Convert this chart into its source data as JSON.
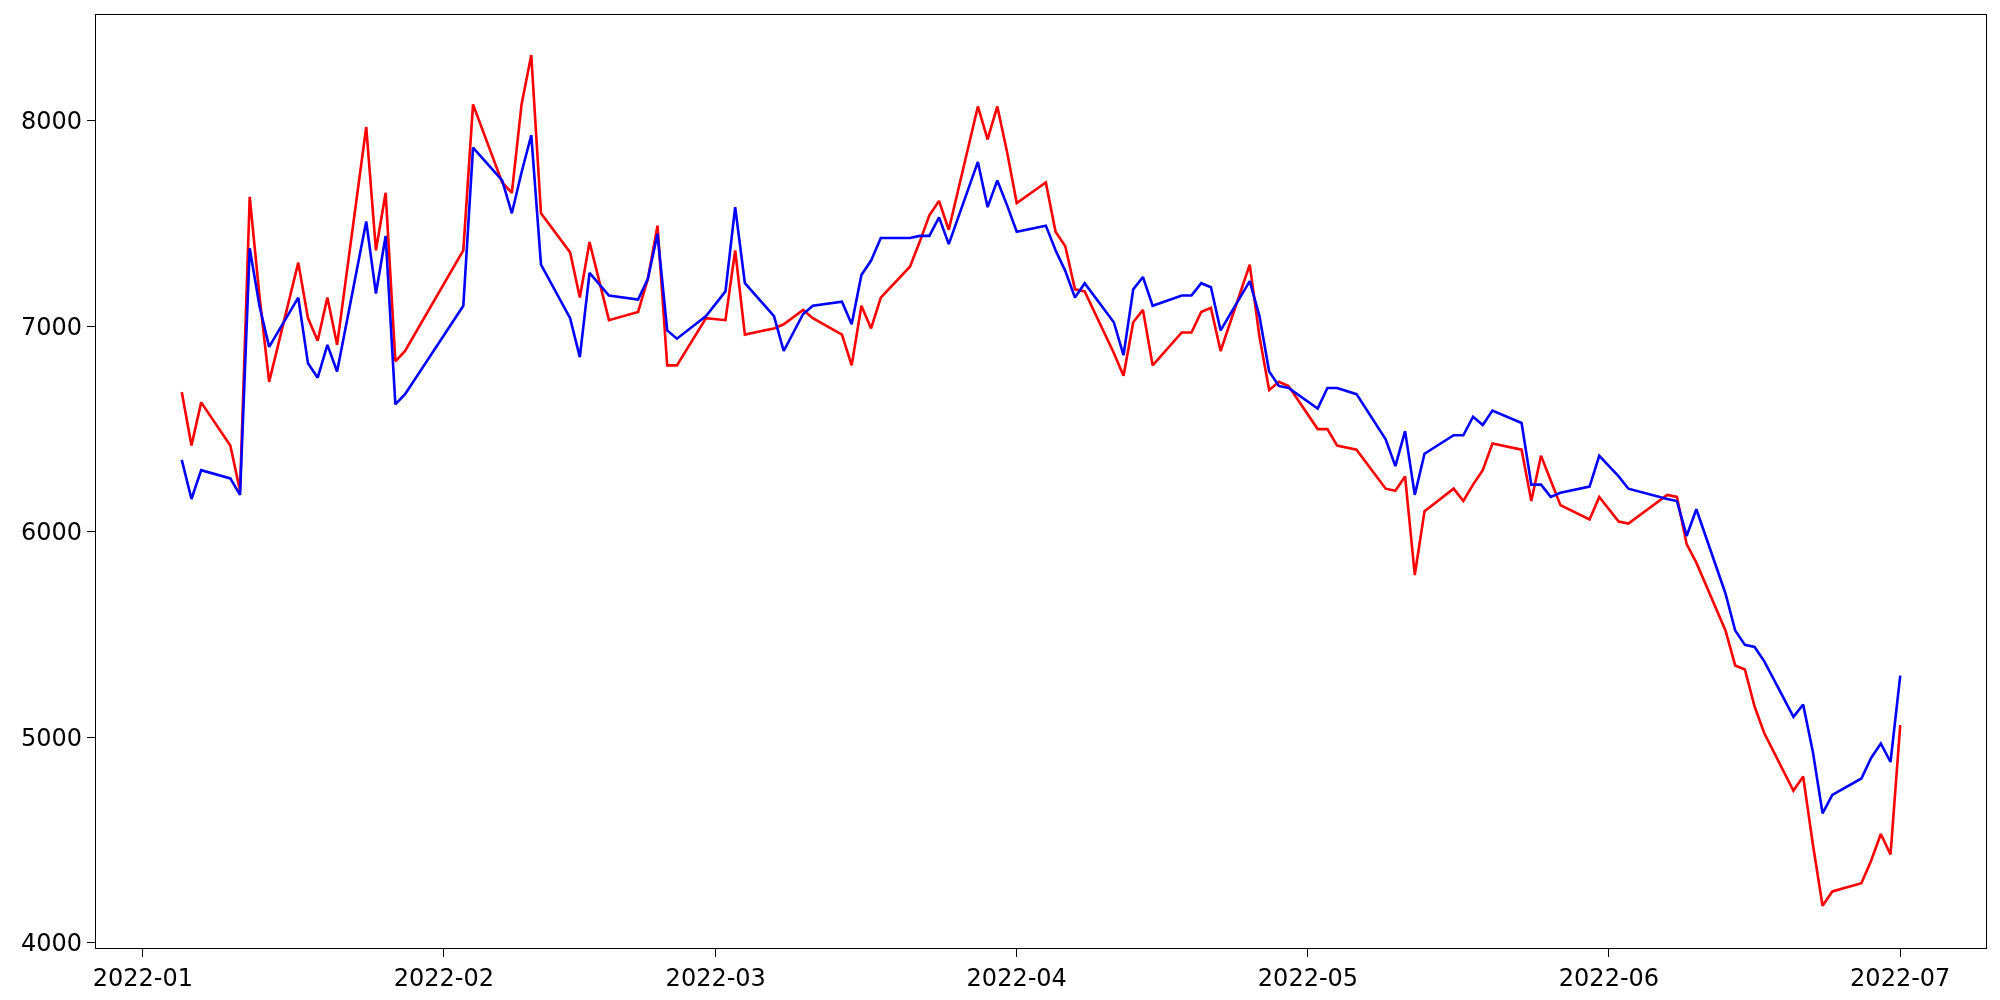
{
  "chart_data": {
    "type": "line",
    "x": [
      "2022-01-05",
      "2022-01-06",
      "2022-01-07",
      "2022-01-10",
      "2022-01-11",
      "2022-01-12",
      "2022-01-13",
      "2022-01-14",
      "2022-01-17",
      "2022-01-18",
      "2022-01-19",
      "2022-01-20",
      "2022-01-21",
      "2022-01-24",
      "2022-01-25",
      "2022-01-26",
      "2022-01-27",
      "2022-01-28",
      "2022-02-03",
      "2022-02-04",
      "2022-02-07",
      "2022-02-08",
      "2022-02-09",
      "2022-02-10",
      "2022-02-11",
      "2022-02-14",
      "2022-02-15",
      "2022-02-16",
      "2022-02-18",
      "2022-02-21",
      "2022-02-22",
      "2022-02-23",
      "2022-02-24",
      "2022-02-25",
      "2022-02-28",
      "2022-03-02",
      "2022-03-03",
      "2022-03-04",
      "2022-03-07",
      "2022-03-08",
      "2022-03-10",
      "2022-03-11",
      "2022-03-14",
      "2022-03-15",
      "2022-03-16",
      "2022-03-17",
      "2022-03-18",
      "2022-03-21",
      "2022-03-22",
      "2022-03-23",
      "2022-03-24",
      "2022-03-25",
      "2022-03-28",
      "2022-03-29",
      "2022-03-30",
      "2022-03-31",
      "2022-04-01",
      "2022-04-04",
      "2022-04-05",
      "2022-04-06",
      "2022-04-07",
      "2022-04-08",
      "2022-04-11",
      "2022-04-12",
      "2022-04-13",
      "2022-04-14",
      "2022-04-15",
      "2022-04-18",
      "2022-04-19",
      "2022-04-20",
      "2022-04-21",
      "2022-04-22",
      "2022-04-25",
      "2022-04-26",
      "2022-04-27",
      "2022-04-28",
      "2022-04-29",
      "2022-05-02",
      "2022-05-03",
      "2022-05-04",
      "2022-05-06",
      "2022-05-09",
      "2022-05-10",
      "2022-05-11",
      "2022-05-12",
      "2022-05-13",
      "2022-05-16",
      "2022-05-17",
      "2022-05-18",
      "2022-05-19",
      "2022-05-20",
      "2022-05-23",
      "2022-05-24",
      "2022-05-25",
      "2022-05-26",
      "2022-05-27",
      "2022-05-30",
      "2022-05-31",
      "2022-06-02",
      "2022-06-03",
      "2022-06-07",
      "2022-06-08",
      "2022-06-09",
      "2022-06-10",
      "2022-06-13",
      "2022-06-14",
      "2022-06-15",
      "2022-06-16",
      "2022-06-17",
      "2022-06-20",
      "2022-06-21",
      "2022-06-22",
      "2022-06-23",
      "2022-06-24",
      "2022-06-27",
      "2022-06-28",
      "2022-06-29",
      "2022-06-30",
      "2022-07-01"
    ],
    "series": [
      {
        "color": "#ff0000",
        "values": [
          6680,
          6420,
          6630,
          6420,
          6200,
          7630,
          7150,
          6730,
          7310,
          7040,
          6930,
          7140,
          6910,
          7970,
          7370,
          7650,
          6830,
          6880,
          7370,
          8080,
          7700,
          7650,
          8080,
          8320,
          7550,
          7360,
          7140,
          7410,
          7030,
          7070,
          7230,
          7490,
          6810,
          6810,
          7040,
          7030,
          7370,
          6960,
          6990,
          7010,
          7080,
          7040,
          6960,
          6810,
          7100,
          6990,
          7140,
          7290,
          7410,
          7540,
          7610,
          7470,
          8070,
          7910,
          8070,
          7850,
          7600,
          7700,
          7460,
          7390,
          7180,
          7170,
          6870,
          6760,
          7020,
          7080,
          6810,
          6970,
          6970,
          7070,
          7090,
          6880,
          7300,
          6950,
          6690,
          6730,
          6710,
          6500,
          6500,
          6420,
          6400,
          6210,
          6200,
          6270,
          5790,
          6100,
          6210,
          6150,
          6230,
          6300,
          6430,
          6400,
          6150,
          6370,
          6250,
          6130,
          6060,
          6170,
          6050,
          6040,
          6180,
          6170,
          5940,
          5850,
          5520,
          5350,
          5330,
          5150,
          5020,
          4740,
          4810,
          4480,
          4180,
          4250,
          4290,
          4400,
          4530,
          4430,
          5060
        ]
      },
      {
        "color": "#0000ff",
        "values": [
          6350,
          6160,
          6300,
          6260,
          6180,
          7380,
          7100,
          6900,
          7140,
          6820,
          6750,
          6910,
          6780,
          7510,
          7160,
          7440,
          6620,
          6670,
          7100,
          7870,
          7710,
          7550,
          7750,
          7930,
          7300,
          7040,
          6850,
          7260,
          7150,
          7130,
          7230,
          7450,
          6980,
          6940,
          7050,
          7170,
          7580,
          7210,
          7050,
          6880,
          7060,
          7100,
          7120,
          7010,
          7250,
          7320,
          7430,
          7430,
          7440,
          7440,
          7530,
          7400,
          7800,
          7580,
          7710,
          7590,
          7460,
          7490,
          7370,
          7270,
          7140,
          7210,
          7020,
          6860,
          7180,
          7240,
          7100,
          7150,
          7150,
          7210,
          7190,
          6980,
          7220,
          7050,
          6780,
          6710,
          6700,
          6600,
          6700,
          6700,
          6670,
          6450,
          6320,
          6490,
          6180,
          6380,
          6470,
          6470,
          6560,
          6520,
          6590,
          6530,
          6230,
          6230,
          6170,
          6190,
          6220,
          6370,
          6270,
          6210,
          6160,
          6150,
          5980,
          6110,
          5700,
          5520,
          5450,
          5440,
          5370,
          5100,
          5160,
          4930,
          4630,
          4720,
          4800,
          4900,
          4970,
          4880,
          5300
        ]
      }
    ],
    "xlim": [
      "2021-12-27T04:00",
      "2022-07-09T20:00"
    ],
    "xticks": [
      {
        "value": "2022-01-01",
        "label": "2022-01"
      },
      {
        "value": "2022-02-01",
        "label": "2022-02"
      },
      {
        "value": "2022-03-01",
        "label": "2022-03"
      },
      {
        "value": "2022-04-01",
        "label": "2022-04"
      },
      {
        "value": "2022-05-01",
        "label": "2022-05"
      },
      {
        "value": "2022-06-01",
        "label": "2022-06"
      },
      {
        "value": "2022-07-01",
        "label": "2022-07"
      }
    ],
    "ylim": [
      3975,
      8515
    ],
    "yticks": [
      4000,
      5000,
      6000,
      7000,
      8000
    ]
  }
}
